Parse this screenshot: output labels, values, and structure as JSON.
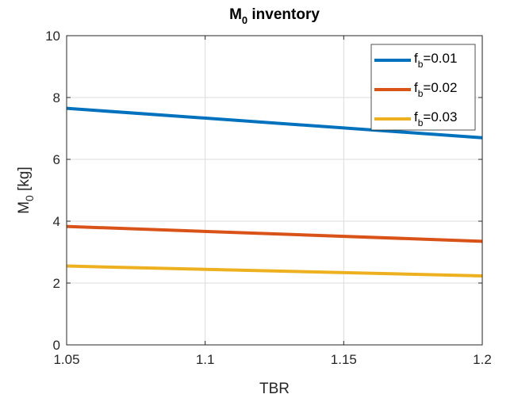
{
  "chart_data": {
    "type": "line",
    "title": {
      "main": "M",
      "sub": "0",
      "rest": " inventory"
    },
    "xlabel": "TBR",
    "ylabel": {
      "main": "M",
      "sub": "0",
      "rest": " [kg]"
    },
    "xlim": [
      1.05,
      1.2
    ],
    "ylim": [
      0,
      10
    ],
    "xticks": [
      1.05,
      1.1,
      1.15,
      1.2
    ],
    "xtick_labels": [
      "1.05",
      "1.1",
      "1.15",
      "1.2"
    ],
    "yticks": [
      0,
      2,
      4,
      6,
      8,
      10
    ],
    "ytick_labels": [
      "0",
      "2",
      "4",
      "6",
      "8",
      "10"
    ],
    "grid": true,
    "legend_position": "top-right",
    "x": [
      1.05,
      1.2
    ],
    "series": [
      {
        "name": {
          "main": "f",
          "sub": "b",
          "rest": "=0.01"
        },
        "color": "#0072BD",
        "values": [
          7.65,
          6.7
        ]
      },
      {
        "name": {
          "main": "f",
          "sub": "b",
          "rest": "=0.02"
        },
        "color": "#D95319",
        "values": [
          3.83,
          3.35
        ]
      },
      {
        "name": {
          "main": "f",
          "sub": "b",
          "rest": "=0.03"
        },
        "color": "#EDB120",
        "values": [
          2.55,
          2.23
        ]
      }
    ]
  }
}
